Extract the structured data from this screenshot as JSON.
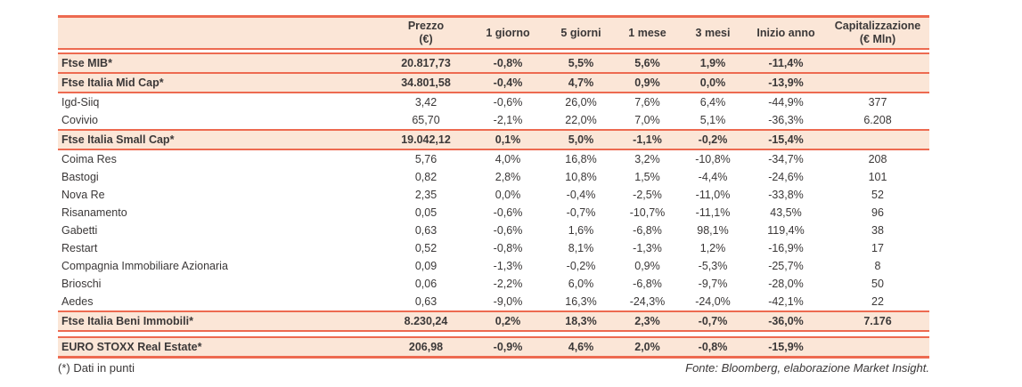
{
  "colors": {
    "border": "#ED6A50",
    "band": "#FBE6D7",
    "text": "#3B3838"
  },
  "table": {
    "header": {
      "empty": "",
      "prezzo_l1": "Prezzo",
      "prezzo_l2": "(€)",
      "d1": "1 giorno",
      "d5": "5 giorni",
      "m1": "1 mese",
      "m3": "3 mesi",
      "ytd": "Inizio anno",
      "cap_l1": "Capitalizzazione",
      "cap_l2": "(€ Mln)"
    },
    "rows": [
      {
        "type": "index",
        "name": "Ftse MIB*",
        "values": [
          "20.817,73",
          "-0,8%",
          "5,5%",
          "5,6%",
          "1,9%",
          "-11,4%",
          ""
        ]
      },
      {
        "type": "index",
        "name": "Ftse Italia Mid Cap*",
        "values": [
          "34.801,58",
          "-0,4%",
          "4,7%",
          "0,9%",
          "0,0%",
          "-13,9%",
          ""
        ]
      },
      {
        "type": "stock",
        "name": "Igd-Siiq",
        "values": [
          "3,42",
          "-0,6%",
          "26,0%",
          "7,6%",
          "6,4%",
          "-44,9%",
          "377"
        ]
      },
      {
        "type": "stock",
        "name": "Covivio",
        "values": [
          "65,70",
          "-2,1%",
          "22,0%",
          "7,0%",
          "5,1%",
          "-36,3%",
          "6.208"
        ]
      },
      {
        "type": "index",
        "name": "Ftse Italia Small Cap*",
        "values": [
          "19.042,12",
          "0,1%",
          "5,0%",
          "-1,1%",
          "-0,2%",
          "-15,4%",
          ""
        ]
      },
      {
        "type": "stock",
        "name": "Coima Res",
        "values": [
          "5,76",
          "4,0%",
          "16,8%",
          "3,2%",
          "-10,8%",
          "-34,7%",
          "208"
        ]
      },
      {
        "type": "stock",
        "name": "Bastogi",
        "values": [
          "0,82",
          "2,8%",
          "10,8%",
          "1,5%",
          "-4,4%",
          "-24,6%",
          "101"
        ]
      },
      {
        "type": "stock",
        "name": "Nova Re",
        "values": [
          "2,35",
          "0,0%",
          "-0,4%",
          "-2,5%",
          "-11,0%",
          "-33,8%",
          "52"
        ]
      },
      {
        "type": "stock",
        "name": "Risanamento",
        "values": [
          "0,05",
          "-0,6%",
          "-0,7%",
          "-10,7%",
          "-11,1%",
          "43,5%",
          "96"
        ]
      },
      {
        "type": "stock",
        "name": "Gabetti",
        "values": [
          "0,63",
          "-0,6%",
          "1,6%",
          "-6,8%",
          "98,1%",
          "119,4%",
          "38"
        ]
      },
      {
        "type": "stock",
        "name": "Restart",
        "values": [
          "0,52",
          "-0,8%",
          "8,1%",
          "-1,3%",
          "1,2%",
          "-16,9%",
          "17"
        ]
      },
      {
        "type": "stock",
        "name": "Compagnia Immobiliare Azionaria",
        "values": [
          "0,09",
          "-1,3%",
          "-0,2%",
          "0,9%",
          "-5,3%",
          "-25,7%",
          "8"
        ]
      },
      {
        "type": "stock",
        "name": "Brioschi",
        "values": [
          "0,06",
          "-2,2%",
          "6,0%",
          "-6,8%",
          "-9,7%",
          "-28,0%",
          "50"
        ]
      },
      {
        "type": "stock",
        "name": "Aedes",
        "values": [
          "0,63",
          "-9,0%",
          "16,3%",
          "-24,3%",
          "-24,0%",
          "-42,1%",
          "22"
        ]
      },
      {
        "type": "index",
        "name": "Ftse Italia Beni Immobili*",
        "values": [
          "8.230,24",
          "0,2%",
          "18,3%",
          "2,3%",
          "-0,7%",
          "-36,0%",
          "7.176"
        ]
      },
      {
        "type": "index",
        "name": "EURO STOXX Real Estate*",
        "values": [
          "206,98",
          "-0,9%",
          "4,6%",
          "2,0%",
          "-0,8%",
          "-15,9%",
          ""
        ]
      }
    ]
  },
  "footer": {
    "note": "(*) Dati in punti",
    "source": "Fonte: Bloomberg, elaborazione Market Insight."
  }
}
